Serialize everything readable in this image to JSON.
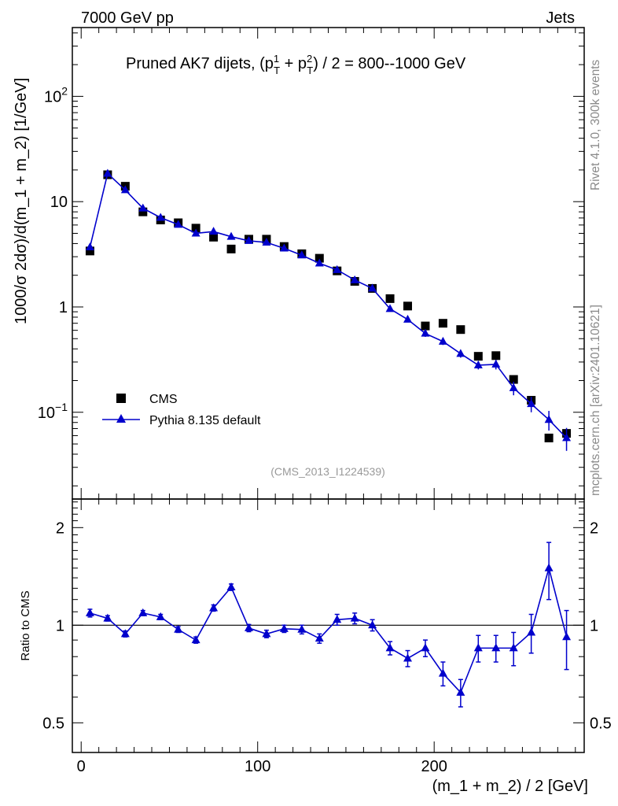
{
  "header": {
    "energy_label": "7000 GeV pp",
    "category_label": "Jets"
  },
  "side_labels": {
    "version": "Rivet 4.1.0,  300k events",
    "source": "mcplots.cern.ch [arXiv:2401.10621]"
  },
  "chart_data": [
    {
      "type": "scatter",
      "panel": "main",
      "title_main": "Pruned AK7 dijets, (p",
      "title_sub1": "T",
      "title_sup1": "1",
      "title_mid": " + p",
      "title_sub2": "T",
      "title_sup2": "2",
      "title_tail": ") / 2 = 800--1000 GeV",
      "ylabel": "1000/σ   2dσ)/d(m_1 + m_2) [1/GeV]",
      "yscale": "log",
      "ylim": [
        0.015,
        450
      ],
      "xlim": [
        -5,
        285
      ],
      "ytick_labels": [
        {
          "value": 100,
          "base": "10",
          "exp": "2"
        },
        {
          "value": 10,
          "base": "10",
          "exp": ""
        },
        {
          "value": 1,
          "base": "1",
          "exp": ""
        },
        {
          "value": 0.1,
          "base": "10",
          "exp": "−1"
        }
      ],
      "analysis_tag": "(CMS_2013_I1224539)",
      "legend_position": "lower-left",
      "x": [
        5,
        15,
        25,
        35,
        45,
        55,
        65,
        75,
        85,
        95,
        105,
        115,
        125,
        135,
        145,
        155,
        165,
        175,
        185,
        195,
        205,
        215,
        225,
        235,
        245,
        255,
        265,
        275
      ],
      "series": [
        {
          "name": "CMS",
          "marker": "square",
          "color": "#000000",
          "values": [
            3.4,
            18.0,
            14.0,
            8.0,
            6.7,
            6.3,
            5.6,
            4.6,
            3.55,
            4.4,
            4.4,
            3.75,
            3.2,
            2.9,
            2.2,
            1.75,
            1.5,
            1.2,
            1.02,
            0.66,
            0.7,
            0.61,
            0.34,
            0.345,
            0.205,
            0.13,
            0.057,
            0.063
          ]
        },
        {
          "name": "Pythia 8.135 default",
          "marker": "triangle",
          "color": "#0000cc",
          "values": [
            3.7,
            18.5,
            12.9,
            8.65,
            7.05,
            6.05,
            5.0,
            5.2,
            4.65,
            4.25,
            4.1,
            3.6,
            3.1,
            2.6,
            2.25,
            1.8,
            1.5,
            0.96,
            0.76,
            0.56,
            0.47,
            0.36,
            0.28,
            0.285,
            0.17,
            0.12,
            0.085,
            0.057
          ],
          "err_low": [
            0.15,
            0.6,
            0.4,
            0.3,
            0.25,
            0.2,
            0.18,
            0.18,
            0.15,
            0.14,
            0.14,
            0.12,
            0.1,
            0.09,
            0.08,
            0.07,
            0.06,
            0.05,
            0.04,
            0.04,
            0.035,
            0.03,
            0.025,
            0.03,
            0.025,
            0.02,
            0.018,
            0.014
          ],
          "err_high": [
            0.15,
            0.6,
            0.4,
            0.3,
            0.25,
            0.2,
            0.18,
            0.18,
            0.15,
            0.14,
            0.14,
            0.12,
            0.1,
            0.09,
            0.08,
            0.07,
            0.06,
            0.05,
            0.04,
            0.04,
            0.035,
            0.03,
            0.025,
            0.03,
            0.025,
            0.02,
            0.018,
            0.014
          ]
        }
      ]
    },
    {
      "type": "line",
      "panel": "ratio",
      "ylabel": "Ratio to CMS",
      "xlabel": "(m_1 + m_2) / 2 [GeV]",
      "yscale": "log",
      "ylim": [
        0.405,
        2.45
      ],
      "xlim": [
        -5,
        285
      ],
      "xtick_labels": [
        {
          "value": 0,
          "label": "0"
        },
        {
          "value": 100,
          "label": "100"
        },
        {
          "value": 200,
          "label": "200"
        }
      ],
      "ytick_labels": [
        {
          "value": 2,
          "label": "2"
        },
        {
          "value": 1,
          "label": "1"
        },
        {
          "value": 0.5,
          "label": "0.5"
        }
      ],
      "reference_line": 1,
      "x": [
        5,
        15,
        25,
        35,
        45,
        55,
        65,
        75,
        85,
        95,
        105,
        115,
        125,
        135,
        145,
        155,
        165,
        175,
        185,
        195,
        205,
        215,
        225,
        235,
        245,
        255,
        265,
        275
      ],
      "series": [
        {
          "name": "Pythia 8.135 default",
          "color": "#0000cc",
          "values": [
            1.09,
            1.05,
            0.94,
            1.09,
            1.06,
            0.97,
            0.9,
            1.13,
            1.31,
            0.98,
            0.94,
            0.975,
            0.97,
            0.91,
            1.04,
            1.05,
            1.0,
            0.85,
            0.79,
            0.85,
            0.71,
            0.62,
            0.85,
            0.85,
            0.85,
            0.95,
            1.5,
            0.92
          ],
          "err_low": [
            0.03,
            0.02,
            0.02,
            0.02,
            0.02,
            0.02,
            0.02,
            0.025,
            0.03,
            0.025,
            0.025,
            0.025,
            0.03,
            0.03,
            0.04,
            0.04,
            0.04,
            0.04,
            0.045,
            0.05,
            0.06,
            0.06,
            0.08,
            0.08,
            0.1,
            0.13,
            0.3,
            0.19
          ],
          "err_high": [
            0.03,
            0.02,
            0.02,
            0.02,
            0.02,
            0.02,
            0.02,
            0.025,
            0.03,
            0.025,
            0.025,
            0.025,
            0.03,
            0.03,
            0.04,
            0.04,
            0.04,
            0.04,
            0.045,
            0.05,
            0.06,
            0.06,
            0.08,
            0.08,
            0.1,
            0.13,
            0.3,
            0.19
          ]
        }
      ]
    }
  ]
}
